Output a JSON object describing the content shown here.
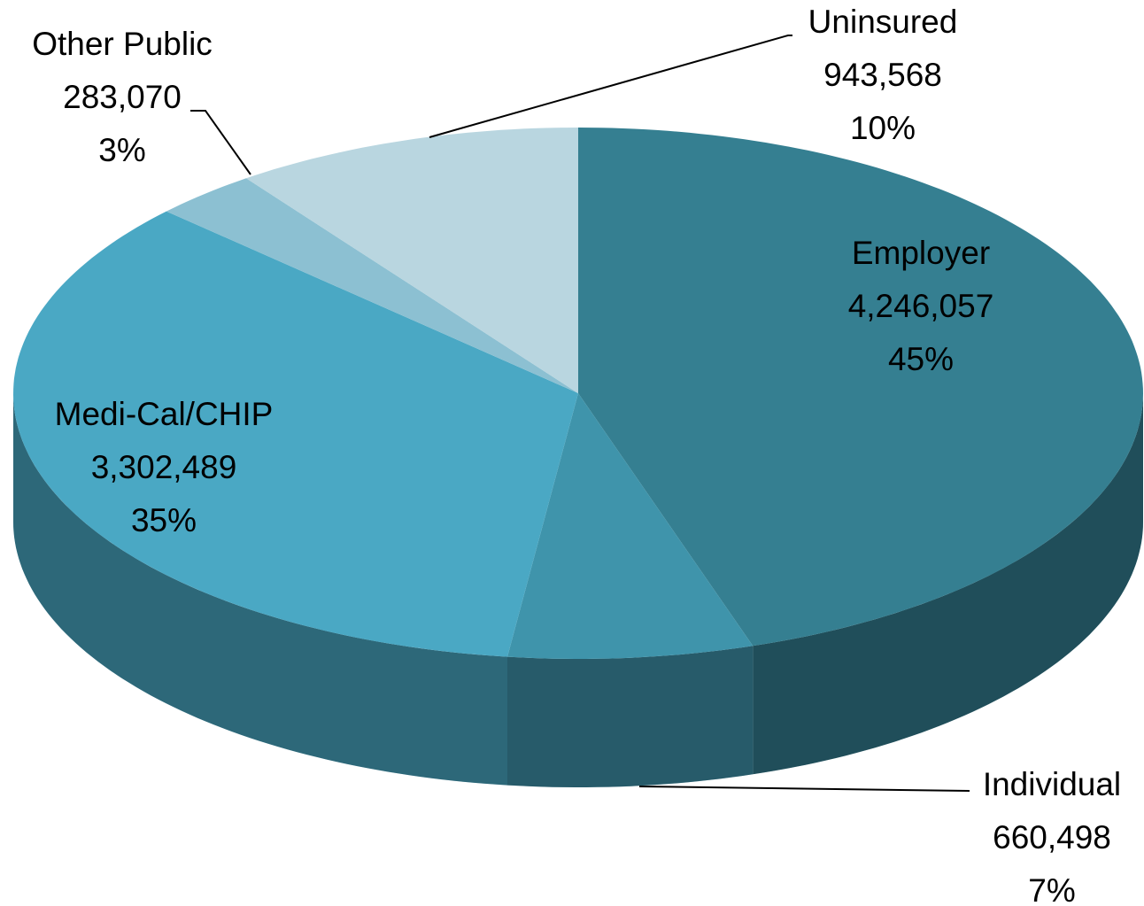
{
  "chart_data": {
    "type": "pie",
    "categories": [
      "Employer",
      "Individual",
      "Medi-Cal/CHIP",
      "Other Public",
      "Uninsured"
    ],
    "values": [
      4246057,
      660498,
      3302489,
      283070,
      943568
    ],
    "value_labels": [
      "4,246,057",
      "660,498",
      "3,302,489",
      "283,070",
      "943,568"
    ],
    "percent_labels": [
      "45%",
      "7%",
      "35%",
      "3%",
      "10%"
    ],
    "colors": [
      "#357f91",
      "#3f94ab",
      "#4aa8c4",
      "#8cc0d2",
      "#b9d6e0"
    ]
  }
}
